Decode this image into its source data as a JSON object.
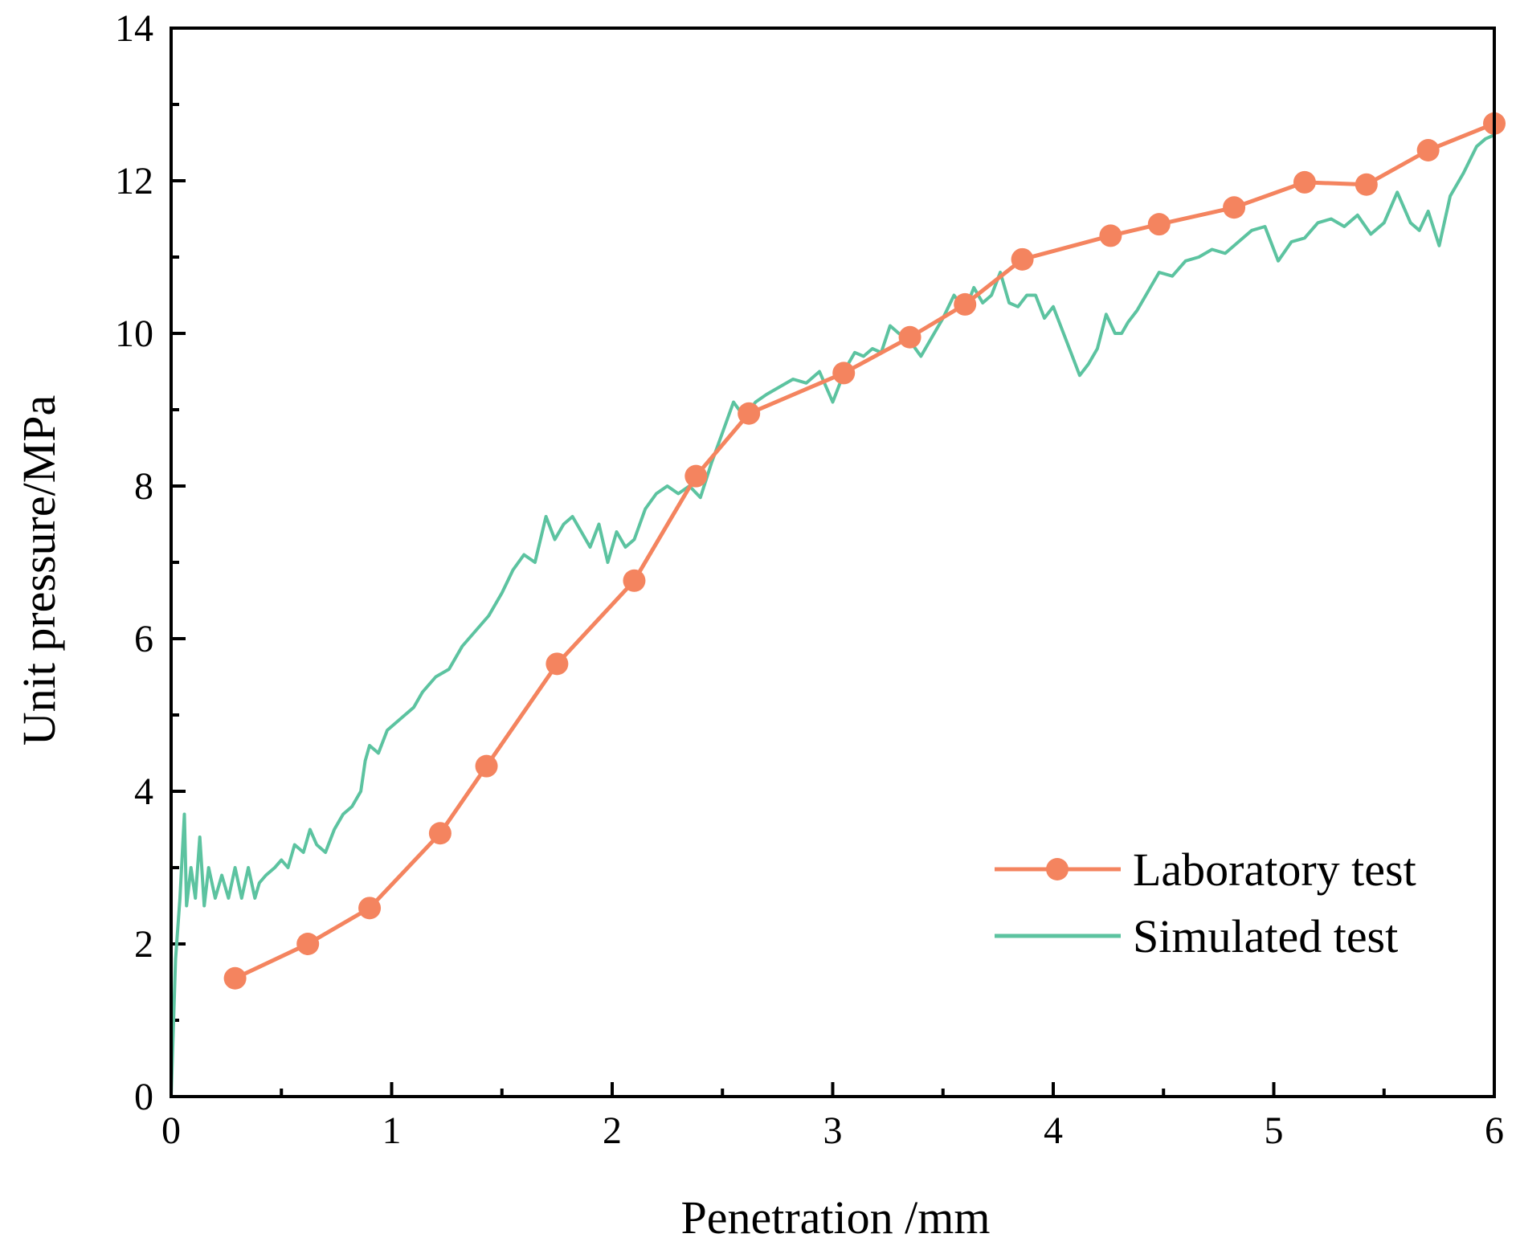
{
  "chart_data": {
    "type": "line",
    "title": "",
    "xlabel": "Penetration /mm",
    "ylabel": "Unit pressure/MPa",
    "xlim": [
      0,
      6
    ],
    "ylim": [
      0,
      14
    ],
    "xticks": [
      0,
      1,
      2,
      3,
      4,
      5,
      6
    ],
    "yticks": [
      0,
      2,
      4,
      6,
      8,
      10,
      12,
      14
    ],
    "grid": false,
    "legend_position": "bottom-right",
    "colors": {
      "laboratory": "#F4845F",
      "simulated": "#5CC3A0"
    },
    "series": [
      {
        "name": "Laboratory test",
        "marker": "circle",
        "x": [
          0.29,
          0.62,
          0.9,
          1.22,
          1.43,
          1.75,
          2.1,
          2.38,
          2.62,
          3.05,
          3.35,
          3.6,
          3.86,
          4.26,
          4.48,
          4.82,
          5.14,
          5.42,
          5.7,
          6.0
        ],
        "y": [
          1.55,
          2.0,
          2.47,
          3.45,
          4.33,
          5.67,
          6.76,
          8.13,
          8.95,
          9.48,
          9.95,
          10.38,
          10.97,
          11.28,
          11.43,
          11.65,
          11.98,
          11.95,
          12.4,
          12.75
        ]
      },
      {
        "name": "Simulated test",
        "marker": "none",
        "x": [
          0.0,
          0.02,
          0.04,
          0.06,
          0.07,
          0.09,
          0.11,
          0.13,
          0.15,
          0.17,
          0.2,
          0.23,
          0.26,
          0.29,
          0.32,
          0.35,
          0.38,
          0.4,
          0.43,
          0.47,
          0.5,
          0.53,
          0.56,
          0.6,
          0.63,
          0.66,
          0.7,
          0.74,
          0.78,
          0.82,
          0.86,
          0.88,
          0.9,
          0.94,
          0.98,
          1.02,
          1.06,
          1.1,
          1.14,
          1.2,
          1.26,
          1.32,
          1.38,
          1.44,
          1.5,
          1.55,
          1.6,
          1.65,
          1.7,
          1.74,
          1.78,
          1.82,
          1.86,
          1.9,
          1.94,
          1.98,
          2.02,
          2.06,
          2.1,
          2.15,
          2.2,
          2.25,
          2.3,
          2.35,
          2.4,
          2.45,
          2.5,
          2.55,
          2.6,
          2.65,
          2.7,
          2.76,
          2.82,
          2.88,
          2.94,
          3.0,
          3.06,
          3.1,
          3.14,
          3.18,
          3.22,
          3.26,
          3.3,
          3.35,
          3.4,
          3.45,
          3.5,
          3.55,
          3.6,
          3.64,
          3.68,
          3.72,
          3.76,
          3.8,
          3.84,
          3.88,
          3.92,
          3.96,
          4.0,
          4.04,
          4.08,
          4.12,
          4.16,
          4.2,
          4.24,
          4.28,
          4.31,
          4.34,
          4.38,
          4.42,
          4.48,
          4.54,
          4.6,
          4.66,
          4.72,
          4.78,
          4.84,
          4.9,
          4.96,
          5.02,
          5.08,
          5.14,
          5.2,
          5.26,
          5.32,
          5.38,
          5.44,
          5.5,
          5.56,
          5.62,
          5.66,
          5.7,
          5.75,
          5.8,
          5.86,
          5.92,
          5.96,
          6.0
        ],
        "y": [
          0.0,
          1.8,
          2.6,
          3.7,
          2.5,
          3.0,
          2.6,
          3.4,
          2.5,
          3.0,
          2.6,
          2.9,
          2.6,
          3.0,
          2.6,
          3.0,
          2.6,
          2.8,
          2.9,
          3.0,
          3.1,
          3.0,
          3.3,
          3.2,
          3.5,
          3.3,
          3.2,
          3.5,
          3.7,
          3.8,
          4.0,
          4.4,
          4.6,
          4.5,
          4.8,
          4.9,
          5.0,
          5.1,
          5.3,
          5.5,
          5.6,
          5.9,
          6.1,
          6.3,
          6.6,
          6.9,
          7.1,
          7.0,
          7.6,
          7.3,
          7.5,
          7.6,
          7.4,
          7.2,
          7.5,
          7.0,
          7.4,
          7.2,
          7.3,
          7.7,
          7.9,
          8.0,
          7.9,
          8.0,
          7.85,
          8.3,
          8.7,
          9.1,
          8.9,
          9.1,
          9.2,
          9.3,
          9.4,
          9.35,
          9.5,
          9.1,
          9.55,
          9.75,
          9.7,
          9.8,
          9.75,
          10.1,
          10.0,
          9.9,
          9.7,
          9.95,
          10.2,
          10.5,
          10.3,
          10.6,
          10.4,
          10.5,
          10.8,
          10.4,
          10.35,
          10.5,
          10.5,
          10.2,
          10.35,
          10.05,
          9.75,
          9.45,
          9.6,
          9.8,
          10.25,
          10.0,
          10.0,
          10.15,
          10.3,
          10.5,
          10.8,
          10.75,
          10.95,
          11.0,
          11.1,
          11.05,
          11.2,
          11.35,
          11.4,
          10.95,
          11.2,
          11.25,
          11.45,
          11.5,
          11.4,
          11.55,
          11.3,
          11.45,
          11.85,
          11.45,
          11.35,
          11.6,
          11.15,
          11.8,
          12.1,
          12.45,
          12.55,
          12.6
        ]
      }
    ]
  }
}
